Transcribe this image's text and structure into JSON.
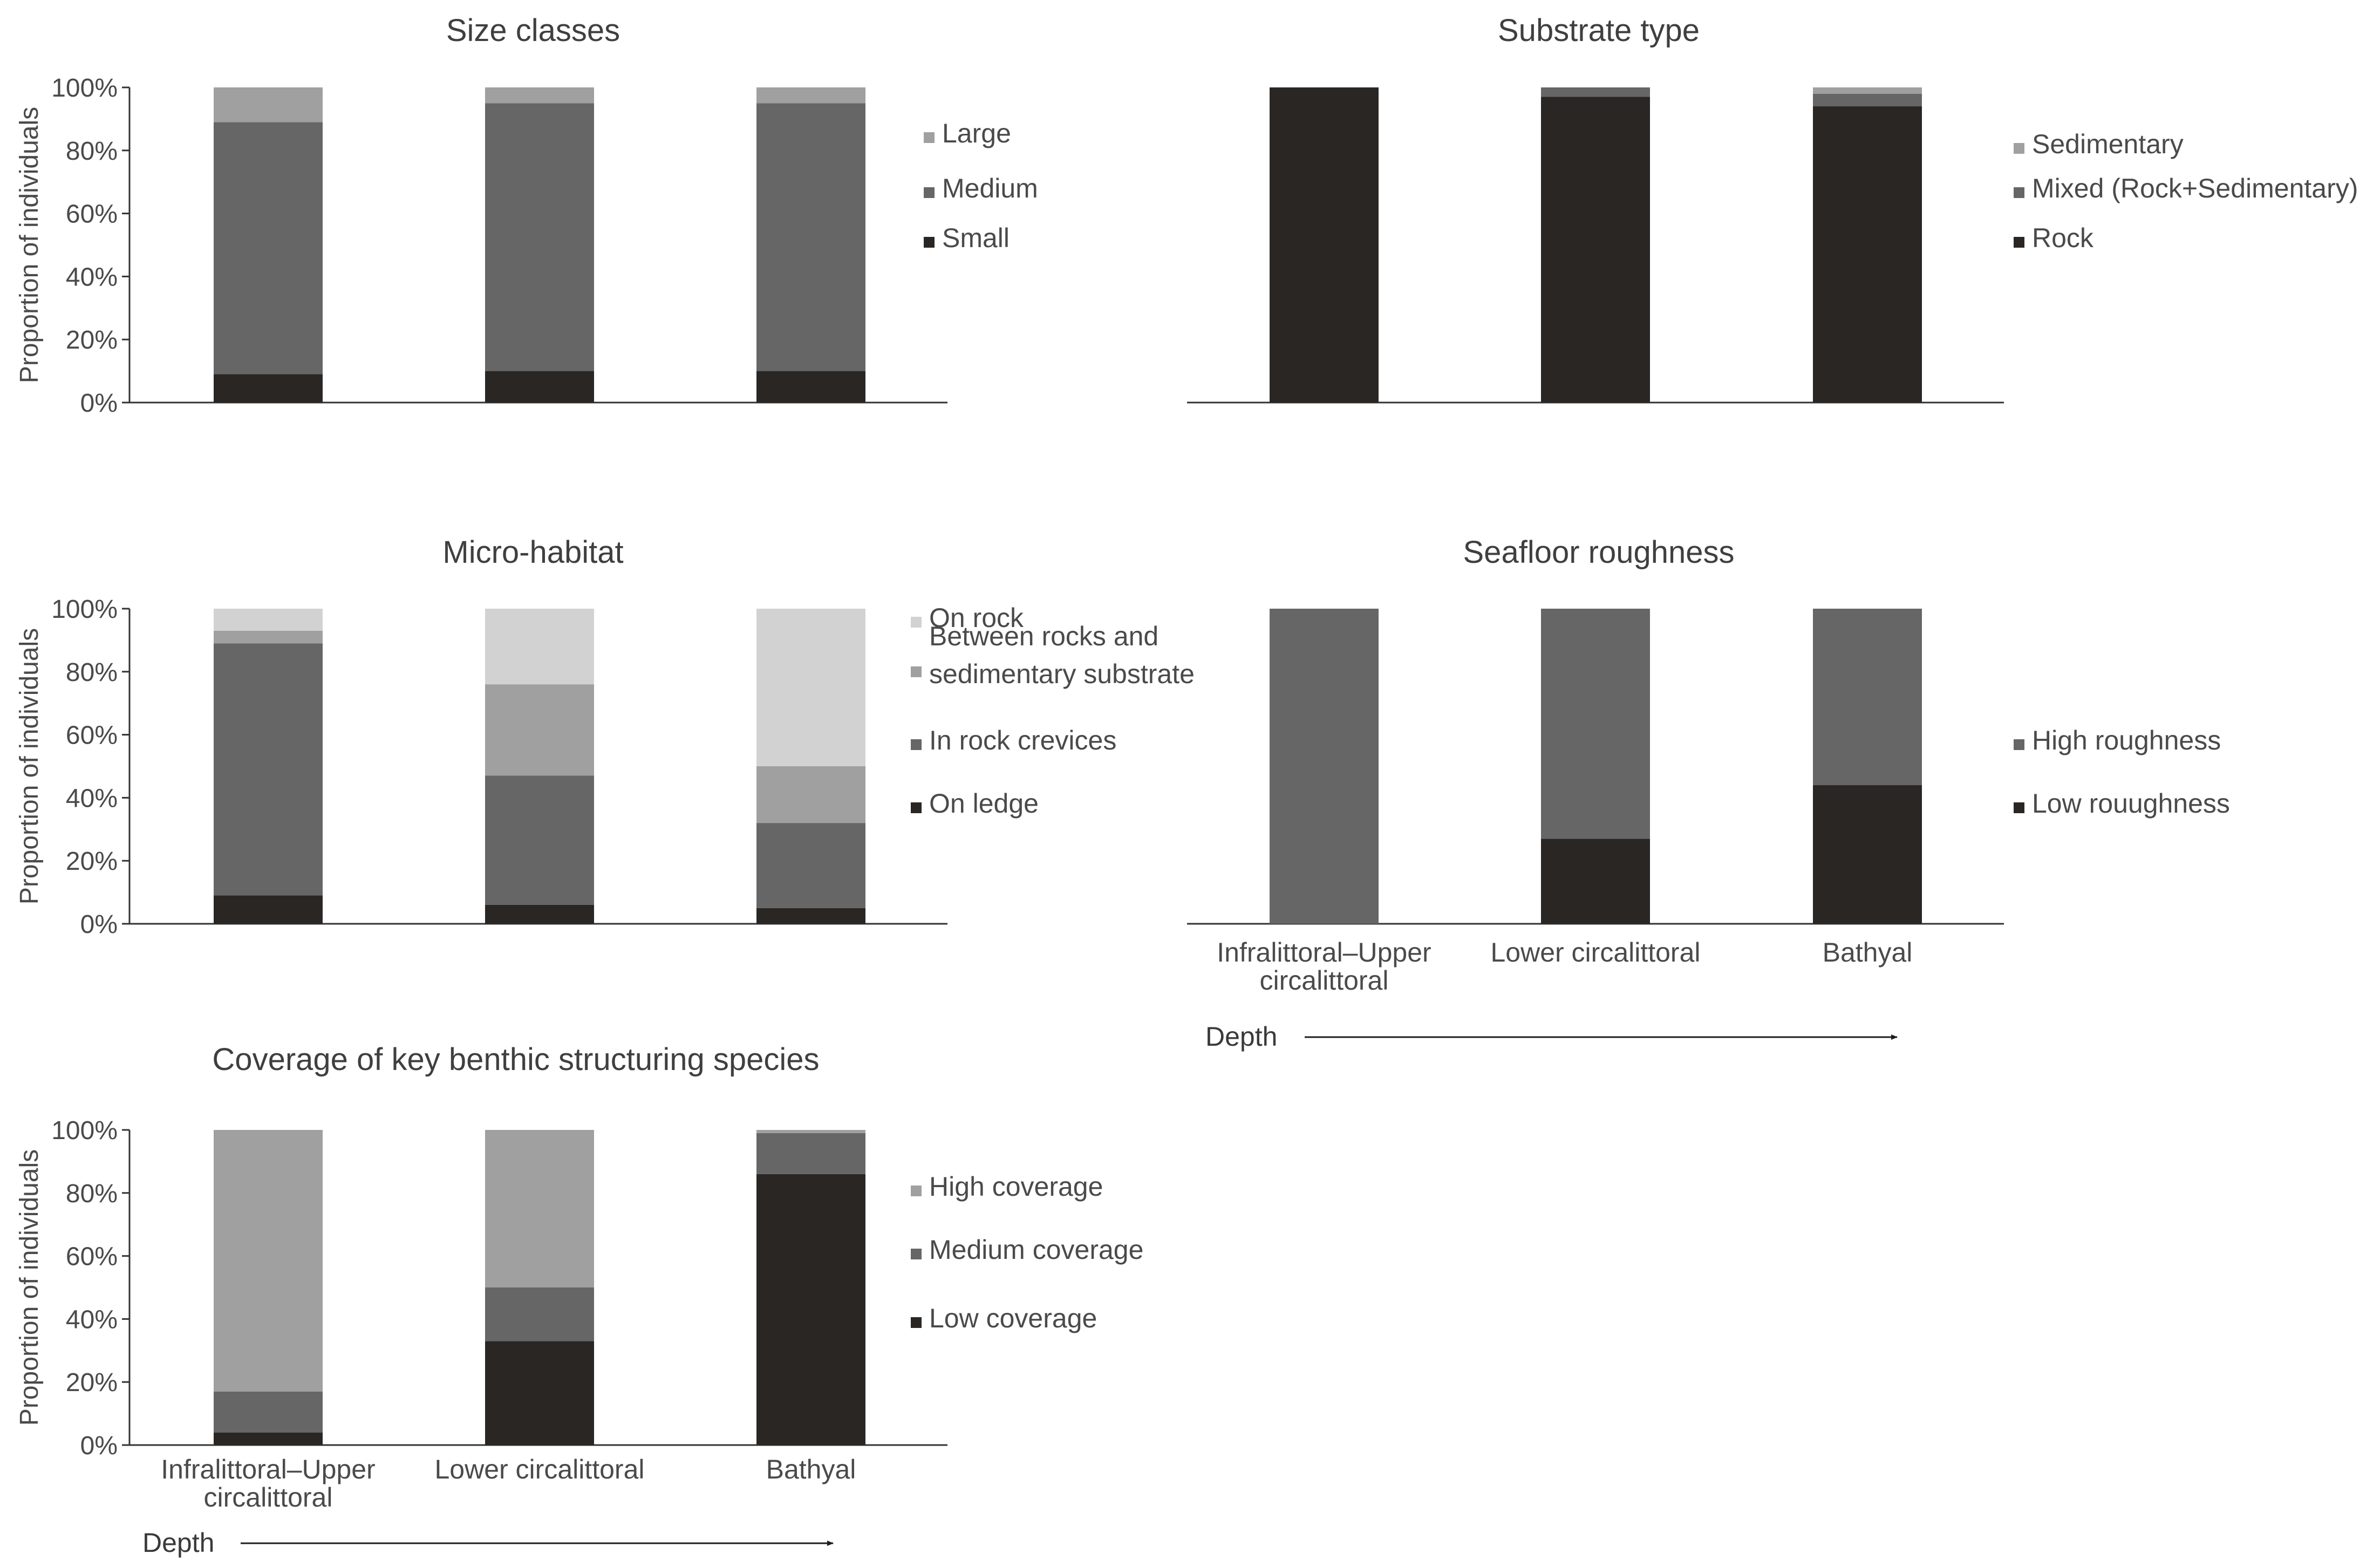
{
  "colors": {
    "black": "#2a2624",
    "dark_gray": "#666666",
    "mid_gray": "#a0a0a0",
    "light_gray": "#d2d2d2",
    "axis": "#333333"
  },
  "depth_label": "Depth",
  "chart_data": [
    {
      "id": "size",
      "type": "bar",
      "stacked": true,
      "title": "Size classes",
      "ylabel": "Proportion of individuals",
      "ylim": [
        0,
        100
      ],
      "yticks": [
        "0%",
        "20%",
        "40%",
        "60%",
        "80%",
        "100%"
      ],
      "categories": [
        "Infralittoral–Upper circalittoral",
        "Lower circalittoral",
        "Bathyal"
      ],
      "show_categories": false,
      "show_y_axis": true,
      "series": [
        {
          "name": "Small",
          "values": [
            9,
            10,
            10
          ],
          "color": "#2a2624"
        },
        {
          "name": "Medium",
          "values": [
            80,
            85,
            85
          ],
          "color": "#666666"
        },
        {
          "name": "Large",
          "values": [
            11,
            5,
            5
          ],
          "color": "#a0a0a0"
        }
      ],
      "legend_order": [
        "Large",
        "Medium",
        "Small"
      ]
    },
    {
      "id": "substrate",
      "type": "bar",
      "stacked": true,
      "title": "Substrate type",
      "ylabel": "",
      "ylim": [
        0,
        100
      ],
      "yticks": [],
      "categories": [
        "Infralittoral–Upper circalittoral",
        "Lower circalittoral",
        "Bathyal"
      ],
      "show_categories": false,
      "show_y_axis": false,
      "series": [
        {
          "name": "Rock",
          "values": [
            100,
            97,
            94
          ],
          "color": "#2a2624"
        },
        {
          "name": "Mixed (Rock+Sedimentary)",
          "values": [
            0,
            3,
            4
          ],
          "color": "#666666"
        },
        {
          "name": "Sedimentary",
          "values": [
            0,
            0,
            2
          ],
          "color": "#a0a0a0"
        }
      ],
      "legend_order": [
        "Sedimentary",
        "Mixed (Rock+Sedimentary)",
        "Rock"
      ]
    },
    {
      "id": "micro",
      "type": "bar",
      "stacked": true,
      "title": "Micro-habitat",
      "ylabel": "Proportion of individuals",
      "ylim": [
        0,
        100
      ],
      "yticks": [
        "0%",
        "20%",
        "40%",
        "60%",
        "80%",
        "100%"
      ],
      "categories": [
        "Infralittoral–Upper circalittoral",
        "Lower circalittoral",
        "Bathyal"
      ],
      "show_categories": false,
      "show_y_axis": true,
      "series": [
        {
          "name": "On ledge",
          "values": [
            9,
            6,
            5
          ],
          "color": "#2a2624"
        },
        {
          "name": "In rock crevices",
          "values": [
            80,
            41,
            27
          ],
          "color": "#666666"
        },
        {
          "name": "Between rocks and sedimentary substrate",
          "values": [
            4,
            29,
            18
          ],
          "color": "#a0a0a0"
        },
        {
          "name": "On rock",
          "values": [
            7,
            24,
            50
          ],
          "color": "#d2d2d2"
        }
      ],
      "legend_order": [
        "On rock",
        "Between rocks and sedimentary substrate",
        "In rock crevices",
        "On ledge"
      ],
      "legend_lines": {
        "Between rocks and sedimentary substrate": [
          "Between rocks and",
          "sedimentary substrate"
        ]
      }
    },
    {
      "id": "roughness",
      "type": "bar",
      "stacked": true,
      "title": "Seafloor roughness",
      "ylabel": "",
      "ylim": [
        0,
        100
      ],
      "yticks": [],
      "categories": [
        "Infralittoral–Upper circalittoral",
        "Lower circalittoral",
        "Bathyal"
      ],
      "category_lines": [
        [
          "Infralittoral–Upper",
          "circalittoral"
        ],
        [
          "Lower circalittoral"
        ],
        [
          "Bathyal"
        ]
      ],
      "show_categories": true,
      "show_y_axis": false,
      "series": [
        {
          "name": "Low rouughness",
          "values": [
            0,
            27,
            44
          ],
          "color": "#2a2624"
        },
        {
          "name": "High roughness",
          "values": [
            100,
            73,
            56
          ],
          "color": "#666666"
        }
      ],
      "legend_order": [
        "High roughness",
        "Low rouughness"
      ]
    },
    {
      "id": "coverage",
      "type": "bar",
      "stacked": true,
      "title": "Coverage of key benthic structuring species",
      "ylabel": "Proportion of individuals",
      "ylim": [
        0,
        100
      ],
      "yticks": [
        "0%",
        "20%",
        "40%",
        "60%",
        "80%",
        "100%"
      ],
      "categories": [
        "Infralittoral–Upper circalittoral",
        "Lower circalittoral",
        "Bathyal"
      ],
      "category_lines": [
        [
          "Infralittoral–Upper",
          "circalittoral"
        ],
        [
          "Lower circalittoral"
        ],
        [
          "Bathyal"
        ]
      ],
      "show_categories": true,
      "show_y_axis": true,
      "series": [
        {
          "name": "Low coverage",
          "values": [
            4,
            33,
            86
          ],
          "color": "#2a2624"
        },
        {
          "name": "Medium coverage",
          "values": [
            13,
            17,
            13
          ],
          "color": "#666666"
        },
        {
          "name": "High coverage",
          "values": [
            83,
            50,
            1
          ],
          "color": "#a0a0a0"
        }
      ],
      "legend_order": [
        "High coverage",
        "Medium coverage",
        "Low coverage"
      ]
    }
  ]
}
